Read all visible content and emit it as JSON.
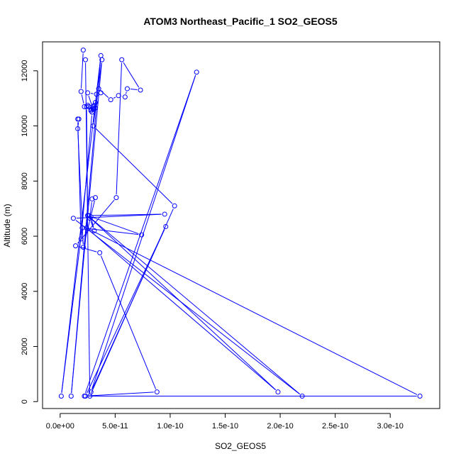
{
  "chart_data": {
    "type": "line",
    "title": "ATOM3 Northeast_Pacific_1 SO2_GEOS5",
    "xlabel": "SO2_GEOS5",
    "ylabel": "Altitude (m)",
    "xlim": [
      -1.6e-11,
      3.45e-10
    ],
    "ylim": [
      -250,
      13050
    ],
    "x_ticks": [
      0,
      5e-11,
      1e-10,
      1.5e-10,
      2e-10,
      2.5e-10,
      3e-10
    ],
    "x_tick_labels": [
      "0.0e+00",
      "5.0e-11",
      "1.0e-10",
      "1.5e-10",
      "2.0e-10",
      "2.5e-10",
      "3.0e-10"
    ],
    "y_ticks": [
      0,
      2000,
      4000,
      6000,
      8000,
      10000,
      12000
    ],
    "y_tick_labels": [
      "0",
      "2000",
      "4000",
      "6000",
      "8000",
      "10000",
      "12000"
    ],
    "grid": false,
    "series_color": "#0000FF",
    "marker": "open-circle",
    "series": [
      {
        "x": [
          2.1e-11,
          1.9e-11,
          2.2e-11,
          2.5e-11,
          2.8e-11,
          3e-11,
          3.2e-11,
          2.8e-11,
          3e-11,
          2.6e-11,
          3.1e-11,
          3.2e-11,
          3e-11,
          2.5e-11,
          3.3e-11,
          3.7e-11,
          3.5e-11,
          4.6e-11,
          5.3e-11,
          5.9e-11,
          6.1e-11,
          7.3e-11,
          5.6e-11,
          5.1e-11,
          1.4e-11,
          3.6e-11,
          8.8e-11,
          2.2e-11,
          1.24e-10,
          2.8e-11,
          9.6e-11,
          2.3e-11,
          3.27e-10,
          2.4e-11,
          1.98e-10,
          2.5e-11,
          2.2e-10,
          1.2e-11,
          9.5e-11,
          2.6e-11,
          2.8e-11,
          3.1e-11,
          2.7e-11,
          2.9e-11,
          3.2e-11,
          2.1e-11,
          1.6e-11,
          1.7e-11,
          1.6e-11,
          1.9e-11,
          2.9e-11,
          2.4e-11,
          2.5e-11,
          7.4e-11,
          2e-11,
          1e-12,
          3.7e-11,
          1e-11,
          3.8e-11,
          3e-11,
          1.04e-10,
          2.7e-11,
          2.3e-11
        ],
        "y": [
          12750,
          11250,
          10700,
          10750,
          10600,
          10700,
          10650,
          10550,
          10650,
          10700,
          10750,
          10850,
          10600,
          11200,
          11150,
          11200,
          11350,
          10950,
          11100,
          11050,
          11350,
          11300,
          12400,
          7400,
          5650,
          5400,
          350,
          200,
          11950,
          350,
          6350,
          200,
          200,
          6300,
          350,
          6750,
          200,
          6650,
          6800,
          6750,
          6700,
          6200,
          6650,
          7350,
          7400,
          5600,
          9900,
          10250,
          10250,
          5900,
          10500,
          10700,
          6750,
          6050,
          6300,
          200,
          12550,
          200,
          12400,
          10000,
          7100,
          200,
          12400
        ]
      }
    ]
  }
}
